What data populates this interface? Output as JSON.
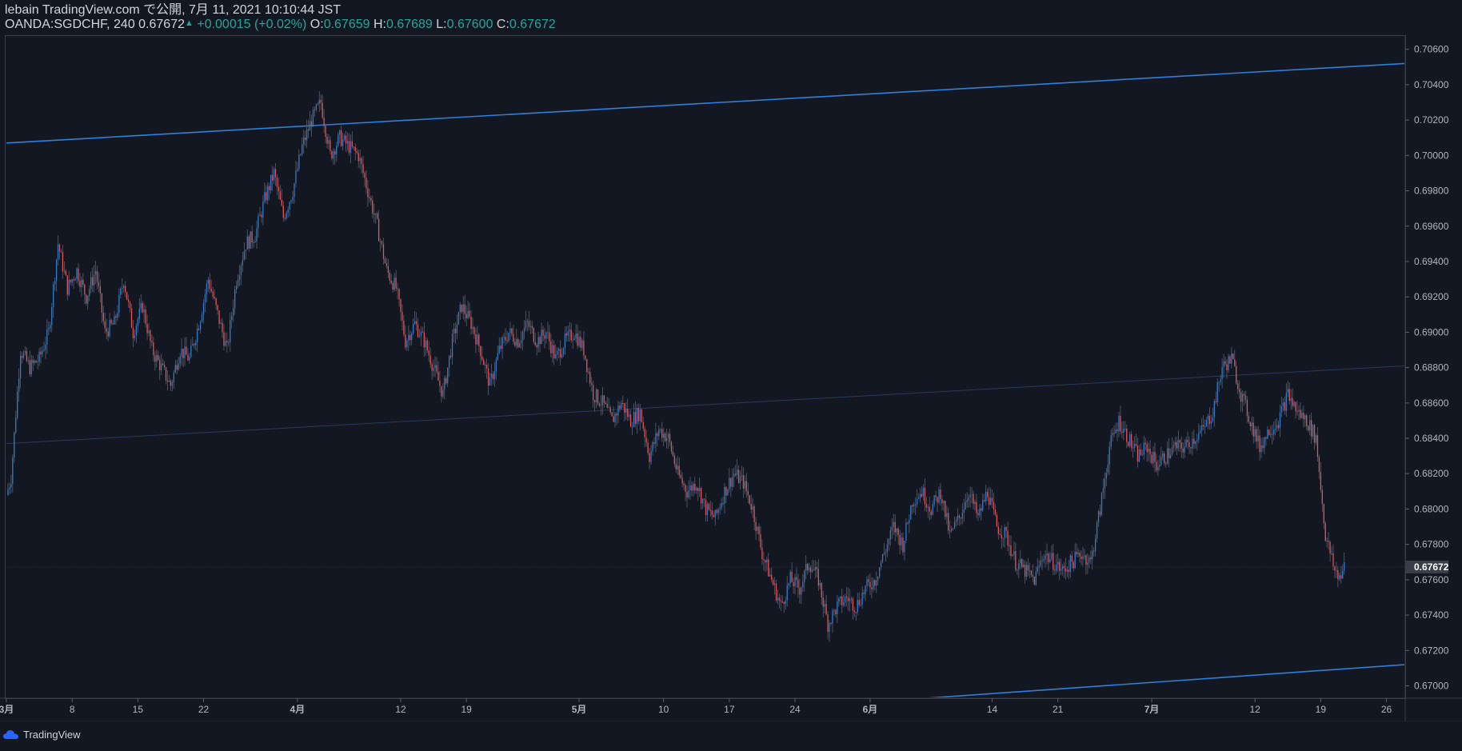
{
  "header": {
    "publisher": "lebain TradingView.com で公開, 7月 11, 2021 10:10:44 JST",
    "symbol_line": "OANDA:SGDCHF, 240 0.67672",
    "change": "+0.00015 (+0.02%)",
    "o_label": "O:",
    "o_value": "0.67659",
    "h_label": "H:",
    "h_value": "0.67689",
    "l_label": "L:",
    "l_value": "0.67600",
    "c_label": "C:",
    "c_value": "0.67672"
  },
  "footer": {
    "brand": "TradingView"
  },
  "colors": {
    "background": "#131722",
    "up": "#2a7fd6",
    "down": "#ef5350",
    "trendline": "#2f7fd9",
    "accent": "#26a69a",
    "axis_text": "#b2b5be"
  },
  "chart_data": {
    "type": "candlestick",
    "symbol": "OANDA:SGDCHF",
    "interval": "240",
    "last_price": "0.67672",
    "ylim": [
      0.6693,
      0.7068
    ],
    "y_ticks": [
      "0.70600",
      "0.70400",
      "0.70200",
      "0.70000",
      "0.69800",
      "0.69600",
      "0.69400",
      "0.69200",
      "0.69000",
      "0.68800",
      "0.68600",
      "0.68400",
      "0.68200",
      "0.68000",
      "0.67800",
      "0.67600",
      "0.67400",
      "0.67200",
      "0.67000"
    ],
    "x_range_days": [
      0,
      149
    ],
    "x_ticks": [
      {
        "label": "3月",
        "day": 0,
        "bold": true
      },
      {
        "label": "8",
        "day": 7
      },
      {
        "label": "15",
        "day": 14
      },
      {
        "label": "22",
        "day": 21
      },
      {
        "label": "4月",
        "day": 31,
        "bold": true
      },
      {
        "label": "12",
        "day": 42
      },
      {
        "label": "19",
        "day": 49
      },
      {
        "label": "5月",
        "day": 61,
        "bold": true
      },
      {
        "label": "10",
        "day": 70
      },
      {
        "label": "17",
        "day": 77
      },
      {
        "label": "24",
        "day": 84
      },
      {
        "label": "6月",
        "day": 92,
        "bold": true
      },
      {
        "label": "14",
        "day": 105
      },
      {
        "label": "21",
        "day": 112
      },
      {
        "label": "7月",
        "day": 122,
        "bold": true
      },
      {
        "label": "12",
        "day": 133
      },
      {
        "label": "19",
        "day": 140
      },
      {
        "label": "26",
        "day": 147
      }
    ],
    "price_path": [
      [
        0,
        0.6808
      ],
      [
        0.5,
        0.6818
      ],
      [
        1.5,
        0.689
      ],
      [
        2.5,
        0.688
      ],
      [
        3.5,
        0.6885
      ],
      [
        4.5,
        0.69
      ],
      [
        5.5,
        0.695
      ],
      [
        6.5,
        0.6925
      ],
      [
        7.5,
        0.6935
      ],
      [
        8.5,
        0.692
      ],
      [
        9.5,
        0.6935
      ],
      [
        10.5,
        0.69
      ],
      [
        11.5,
        0.6905
      ],
      [
        12.5,
        0.693
      ],
      [
        13.5,
        0.69
      ],
      [
        14.5,
        0.6915
      ],
      [
        15.5,
        0.689
      ],
      [
        16.5,
        0.688
      ],
      [
        17.5,
        0.687
      ],
      [
        18.5,
        0.689
      ],
      [
        19.5,
        0.6885
      ],
      [
        20.5,
        0.6905
      ],
      [
        21.5,
        0.693
      ],
      [
        22.5,
        0.691
      ],
      [
        23.5,
        0.689
      ],
      [
        24.5,
        0.693
      ],
      [
        25.5,
        0.695
      ],
      [
        26.5,
        0.6955
      ],
      [
        27.5,
        0.6975
      ],
      [
        28.5,
        0.699
      ],
      [
        29.5,
        0.6965
      ],
      [
        30.5,
        0.698
      ],
      [
        31.5,
        0.7005
      ],
      [
        32.5,
        0.702
      ],
      [
        33.5,
        0.703
      ],
      [
        34.5,
        0.7
      ],
      [
        35.5,
        0.701
      ],
      [
        36.5,
        0.7005
      ],
      [
        37.5,
        0.7
      ],
      [
        38.5,
        0.698
      ],
      [
        39.5,
        0.696
      ],
      [
        40.5,
        0.6935
      ],
      [
        41.5,
        0.6925
      ],
      [
        42.5,
        0.6895
      ],
      [
        43.5,
        0.6905
      ],
      [
        44.5,
        0.6895
      ],
      [
        45.5,
        0.688
      ],
      [
        46.5,
        0.6865
      ],
      [
        47.5,
        0.6895
      ],
      [
        48.5,
        0.6915
      ],
      [
        49.5,
        0.6905
      ],
      [
        50.5,
        0.689
      ],
      [
        51.5,
        0.687
      ],
      [
        52.5,
        0.689
      ],
      [
        53.5,
        0.69
      ],
      [
        54.5,
        0.6895
      ],
      [
        55.5,
        0.6905
      ],
      [
        56.5,
        0.6895
      ],
      [
        57.5,
        0.69
      ],
      [
        58.5,
        0.6885
      ],
      [
        59.5,
        0.6895
      ],
      [
        60.5,
        0.69
      ],
      [
        61.5,
        0.689
      ],
      [
        62.5,
        0.6865
      ],
      [
        63.5,
        0.686
      ],
      [
        64.5,
        0.685
      ],
      [
        65.5,
        0.686
      ],
      [
        66.5,
        0.685
      ],
      [
        67.5,
        0.6855
      ],
      [
        68.5,
        0.683
      ],
      [
        69.5,
        0.6845
      ],
      [
        70.5,
        0.684
      ],
      [
        71.5,
        0.682
      ],
      [
        72.5,
        0.681
      ],
      [
        73.5,
        0.6815
      ],
      [
        74.5,
        0.68
      ],
      [
        75.5,
        0.6795
      ],
      [
        76.5,
        0.681
      ],
      [
        77.5,
        0.682
      ],
      [
        78.5,
        0.6815
      ],
      [
        79.5,
        0.68
      ],
      [
        80.5,
        0.6775
      ],
      [
        81.5,
        0.676
      ],
      [
        82.5,
        0.6745
      ],
      [
        83.5,
        0.676
      ],
      [
        84.5,
        0.6755
      ],
      [
        85.5,
        0.677
      ],
      [
        86.5,
        0.676
      ],
      [
        87.5,
        0.6735
      ],
      [
        88.5,
        0.6745
      ],
      [
        89.5,
        0.675
      ],
      [
        90.5,
        0.6745
      ],
      [
        91.5,
        0.6755
      ],
      [
        92.5,
        0.676
      ],
      [
        93.5,
        0.6775
      ],
      [
        94.5,
        0.679
      ],
      [
        95.5,
        0.678
      ],
      [
        96.5,
        0.6805
      ],
      [
        97.5,
        0.681
      ],
      [
        98.5,
        0.68
      ],
      [
        99.5,
        0.681
      ],
      [
        100.5,
        0.6785
      ],
      [
        101.5,
        0.6795
      ],
      [
        102.5,
        0.681
      ],
      [
        103.5,
        0.6795
      ],
      [
        104.5,
        0.681
      ],
      [
        105.5,
        0.679
      ],
      [
        106.5,
        0.6785
      ],
      [
        107.5,
        0.677
      ],
      [
        108.5,
        0.6765
      ],
      [
        109.5,
        0.676
      ],
      [
        110.5,
        0.6775
      ],
      [
        111.5,
        0.677
      ],
      [
        112.5,
        0.6765
      ],
      [
        113.5,
        0.677
      ],
      [
        114.5,
        0.6775
      ],
      [
        115.5,
        0.677
      ],
      [
        116.5,
        0.68
      ],
      [
        117.5,
        0.6835
      ],
      [
        118.5,
        0.685
      ],
      [
        119.5,
        0.684
      ],
      [
        120.5,
        0.683
      ],
      [
        121.5,
        0.6835
      ],
      [
        122.5,
        0.6825
      ],
      [
        123.5,
        0.683
      ],
      [
        124.5,
        0.6835
      ],
      [
        125.5,
        0.6835
      ],
      [
        126.5,
        0.684
      ],
      [
        127.5,
        0.6845
      ],
      [
        128.5,
        0.6855
      ],
      [
        129.5,
        0.688
      ],
      [
        130.5,
        0.6885
      ],
      [
        131.5,
        0.6865
      ],
      [
        132.5,
        0.685
      ],
      [
        133.5,
        0.6835
      ],
      [
        134.5,
        0.6845
      ],
      [
        135.5,
        0.685
      ],
      [
        136.5,
        0.6865
      ],
      [
        137.5,
        0.6855
      ],
      [
        138.5,
        0.685
      ],
      [
        139.5,
        0.684
      ],
      [
        140.5,
        0.6785
      ],
      [
        141.5,
        0.6765
      ],
      [
        142.0,
        0.6762
      ],
      [
        142.5,
        0.6767
      ]
    ],
    "trendlines": [
      {
        "from": [
          0,
          0.7007
        ],
        "to": [
          149,
          0.7052
        ],
        "style": "solid"
      },
      {
        "from": [
          98,
          0.6693
        ],
        "to": [
          149,
          0.6712
        ],
        "style": "solid"
      },
      {
        "from": [
          0,
          0.6837
        ],
        "to": [
          149,
          0.6881
        ],
        "style": "faint"
      }
    ]
  }
}
